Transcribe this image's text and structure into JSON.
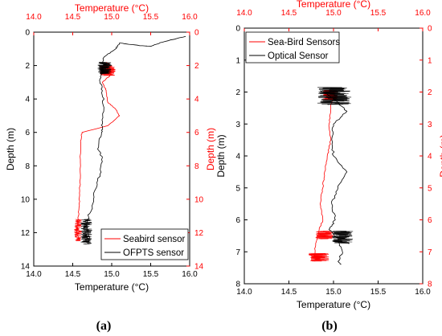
{
  "colors": {
    "black": "#000000",
    "red": "#ff0000"
  },
  "chart_data": [
    {
      "id": "a",
      "type": "line",
      "caption": "(a)",
      "xlabel_bottom": "Temperature (°C)",
      "xlabel_top": "Temperature (°C)",
      "ylabel_left": "Depth (m)",
      "ylabel_right": "Depth (m)",
      "xlim": [
        14.0,
        16.0
      ],
      "ylim": [
        0,
        14
      ],
      "y_inverted": true,
      "x_ticks": [
        "14.0",
        "14.5",
        "15.0",
        "15.5",
        "16.0"
      ],
      "y_ticks": [
        "0",
        "2",
        "4",
        "6",
        "8",
        "10",
        "12",
        "14"
      ],
      "legend_position": "bottom-right",
      "series": [
        {
          "name": "Seabird sensor",
          "color": "#ff0000",
          "points": [
            [
              14.93,
              1.8
            ],
            [
              15.0,
              2.0
            ],
            [
              14.9,
              2.3
            ],
            [
              15.0,
              2.5
            ],
            [
              14.88,
              3.0
            ],
            [
              14.93,
              3.5
            ],
            [
              14.95,
              4.2
            ],
            [
              15.05,
              4.6
            ],
            [
              15.1,
              5.0
            ],
            [
              14.95,
              5.6
            ],
            [
              14.62,
              6.0
            ],
            [
              14.6,
              6.5
            ],
            [
              14.6,
              8.0
            ],
            [
              14.59,
              9.5
            ],
            [
              14.58,
              10.5
            ],
            [
              14.57,
              11.2
            ],
            [
              14.55,
              11.8
            ],
            [
              14.58,
              12.5
            ]
          ],
          "noisy_segments": [
            [
              14.85,
              15.05,
              2.0,
              2.6
            ],
            [
              14.52,
              14.62,
              11.2,
              12.5
            ]
          ]
        },
        {
          "name": "OFPTS sensor",
          "color": "#000000",
          "points": [
            [
              15.95,
              0.25
            ],
            [
              15.65,
              0.6
            ],
            [
              15.5,
              0.85
            ],
            [
              15.35,
              0.8
            ],
            [
              15.1,
              0.65
            ],
            [
              15.05,
              1.0
            ],
            [
              14.9,
              1.5
            ],
            [
              14.88,
              2.2
            ],
            [
              14.85,
              2.8
            ],
            [
              14.88,
              3.5
            ],
            [
              14.9,
              4.5
            ],
            [
              14.88,
              5.5
            ],
            [
              14.87,
              6.0
            ],
            [
              14.82,
              7.0
            ],
            [
              14.88,
              7.5
            ],
            [
              14.85,
              8.5
            ],
            [
              14.78,
              9.5
            ],
            [
              14.75,
              10.5
            ],
            [
              14.7,
              11.0
            ],
            [
              14.68,
              11.6
            ],
            [
              14.72,
              12.3
            ],
            [
              14.7,
              12.7
            ]
          ],
          "noisy_segments": [
            [
              14.82,
              15.0,
              1.8,
              2.5
            ],
            [
              14.6,
              14.75,
              11.2,
              12.7
            ]
          ]
        }
      ]
    },
    {
      "id": "b",
      "type": "line",
      "caption": "(b)",
      "xlabel_bottom": "Temperature (°C)",
      "xlabel_top": "Temperature (°C)",
      "ylabel_left": "Depth (m)",
      "ylabel_right": "Depth (m)",
      "xlim": [
        14.0,
        16.0
      ],
      "ylim": [
        0,
        8
      ],
      "y_inverted": true,
      "x_ticks": [
        "14.0",
        "14.5",
        "15.0",
        "15.5",
        "16.0"
      ],
      "y_ticks": [
        "0",
        "1",
        "2",
        "3",
        "4",
        "5",
        "6",
        "7",
        "8"
      ],
      "legend_position": "top-left",
      "series": [
        {
          "name": "Sea-Bird Sensors",
          "color": "#ff0000",
          "points": [
            [
              15.0,
              2.0
            ],
            [
              14.97,
              2.5
            ],
            [
              14.95,
              3.0
            ],
            [
              14.97,
              3.5
            ],
            [
              14.93,
              4.0
            ],
            [
              14.9,
              4.5
            ],
            [
              14.88,
              5.0
            ],
            [
              14.85,
              5.5
            ],
            [
              14.88,
              6.0
            ],
            [
              14.84,
              6.3
            ],
            [
              14.8,
              6.8
            ],
            [
              14.78,
              7.2
            ]
          ],
          "noisy_segments": [
            [
              14.88,
              15.05,
              1.95,
              2.25
            ],
            [
              14.8,
              15.0,
              6.35,
              6.6
            ],
            [
              14.72,
              14.95,
              7.05,
              7.3
            ]
          ]
        },
        {
          "name": "Optical Sensor",
          "color": "#000000",
          "points": [
            [
              14.85,
              1.95
            ],
            [
              15.0,
              2.2
            ],
            [
              15.15,
              2.6
            ],
            [
              15.0,
              3.0
            ],
            [
              14.98,
              3.5
            ],
            [
              15.0,
              4.0
            ],
            [
              15.15,
              4.5
            ],
            [
              15.05,
              5.0
            ],
            [
              14.98,
              5.5
            ],
            [
              15.02,
              6.0
            ],
            [
              14.95,
              6.3
            ],
            [
              15.05,
              6.6
            ],
            [
              15.1,
              7.0
            ],
            [
              15.05,
              7.3
            ],
            [
              15.08,
              7.4
            ]
          ],
          "noisy_segments": [
            [
              14.82,
              15.2,
              1.85,
              2.4
            ],
            [
              14.98,
              15.22,
              6.35,
              6.75
            ]
          ]
        }
      ]
    }
  ]
}
